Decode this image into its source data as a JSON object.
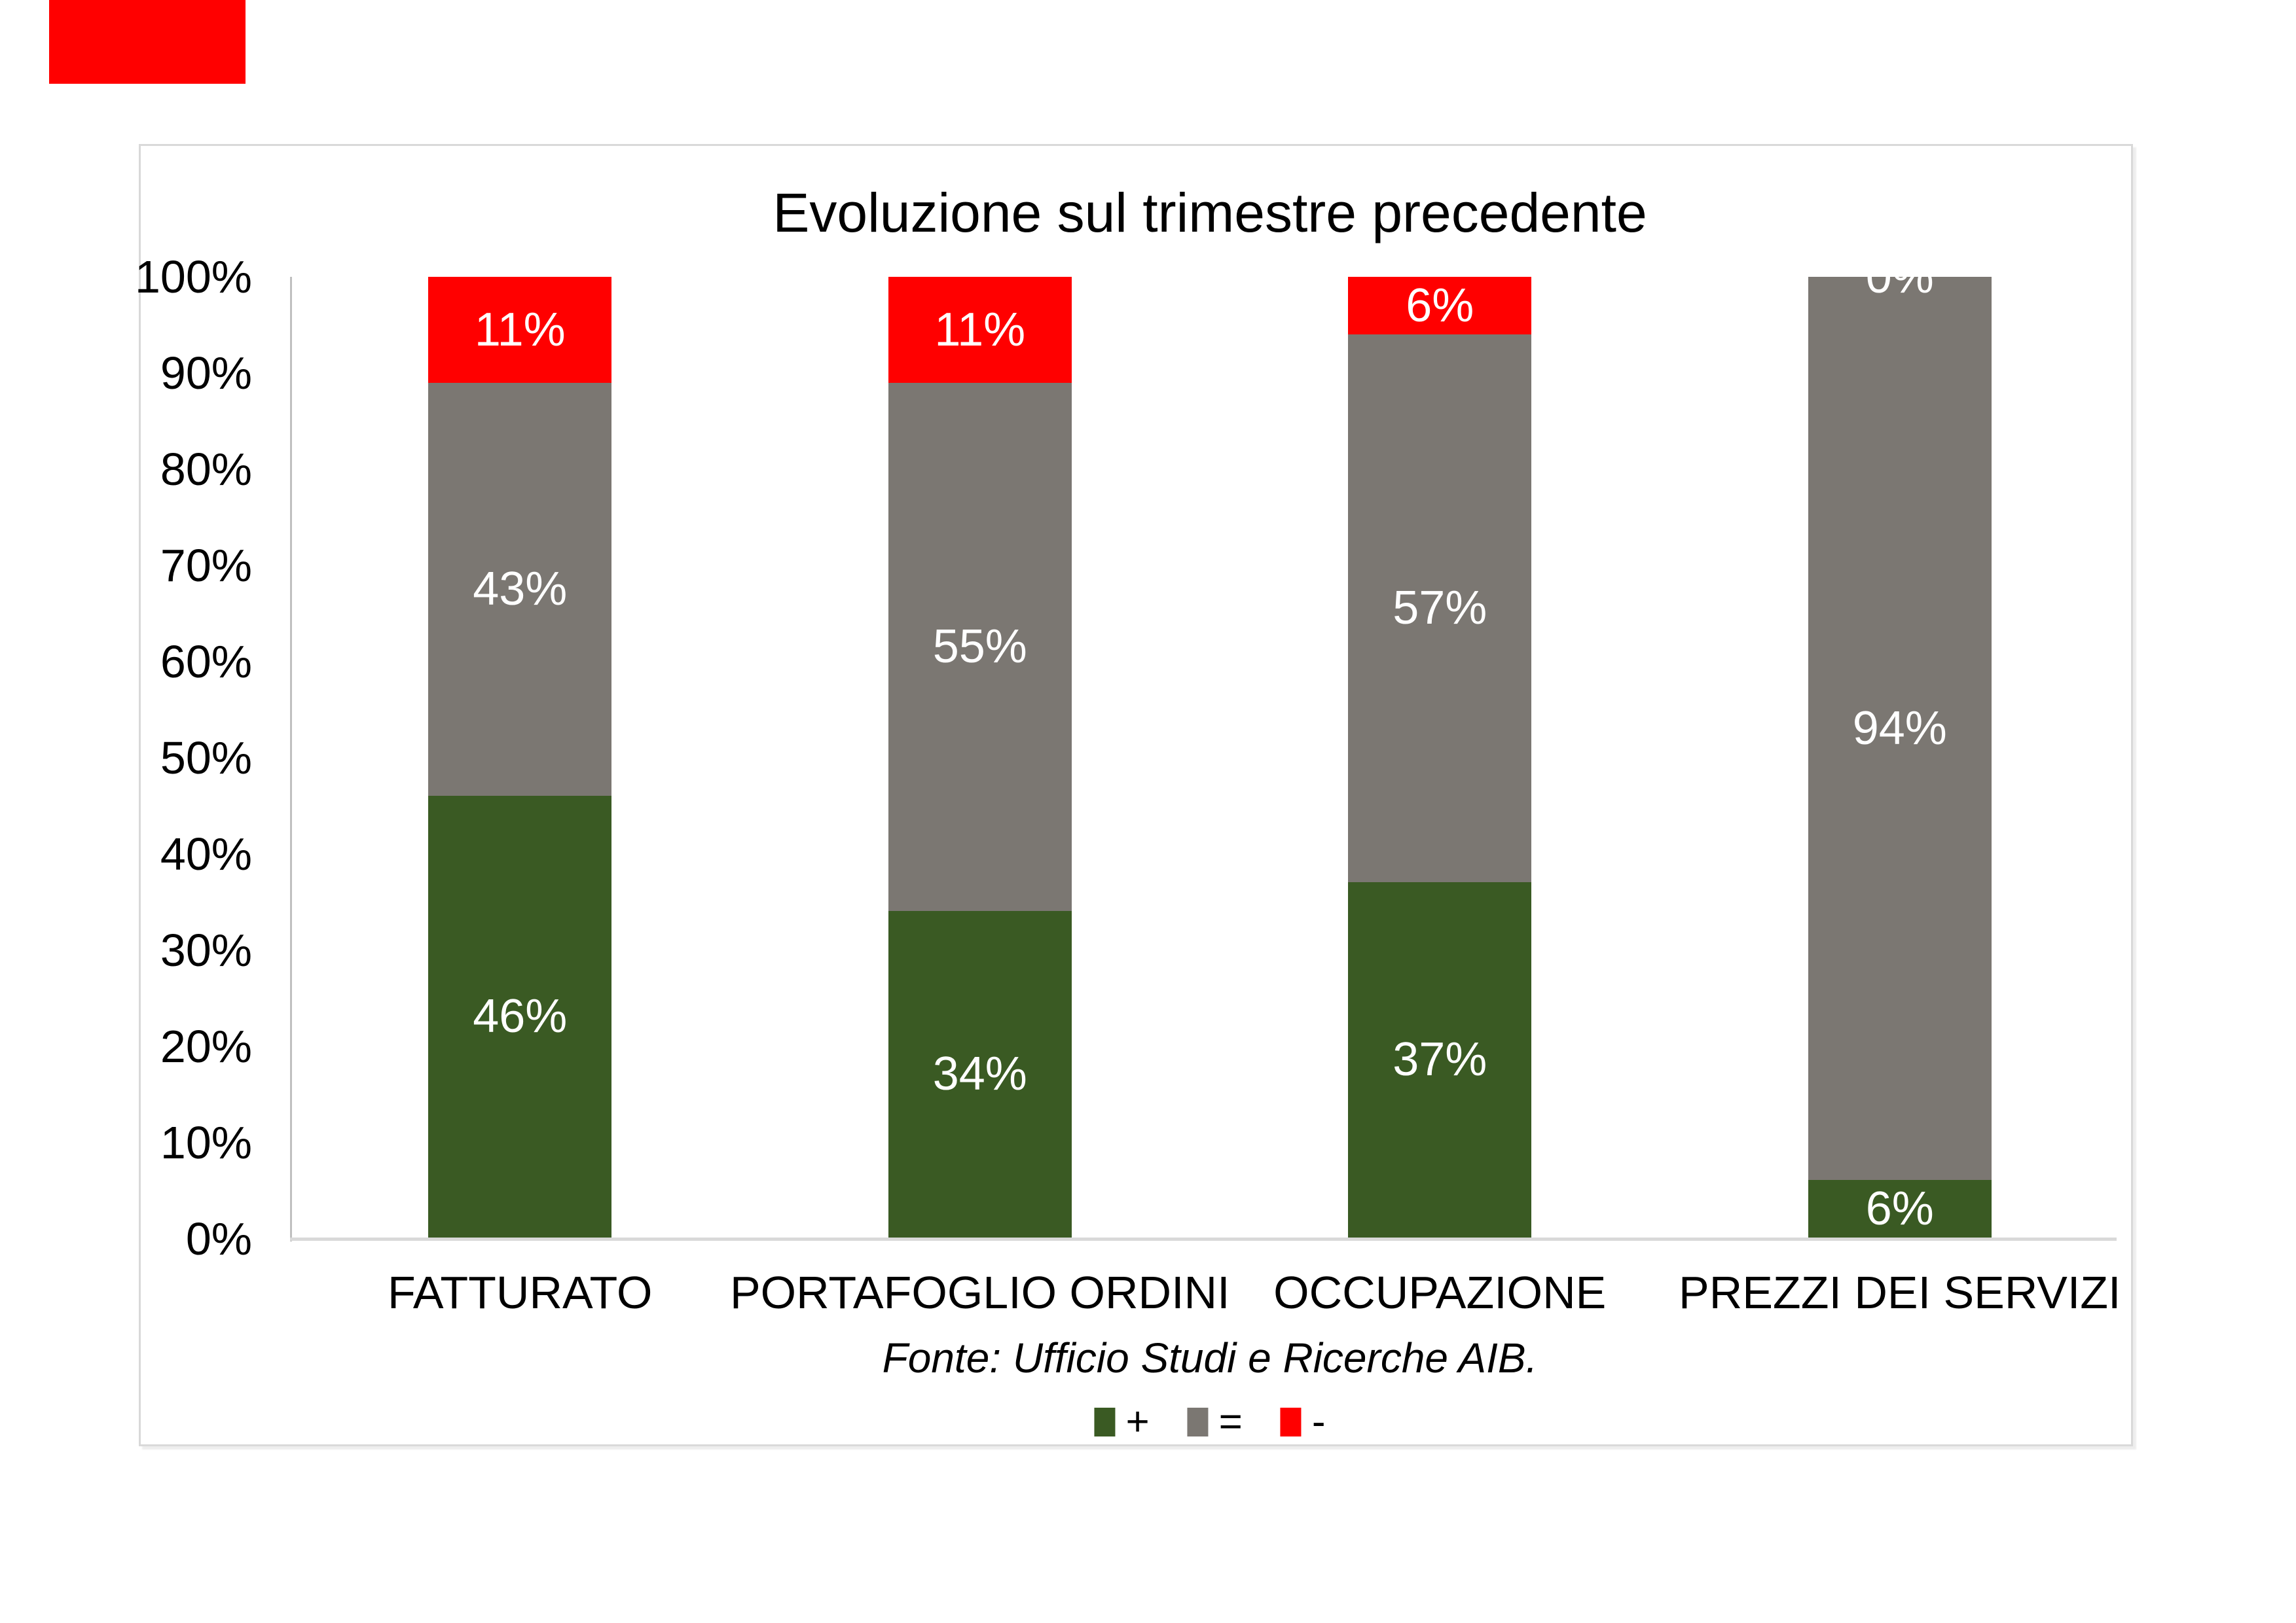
{
  "page": {
    "background": "#ffffff",
    "corner_mark_color": "#ff0000"
  },
  "chart": {
    "title": "Evoluzione sul trimestre precedente",
    "source": "Fonte: Ufficio Studi e Ricerche AIB."
  },
  "chart_data": {
    "type": "bar",
    "subtype": "stacked-100-percent-column",
    "title": "Evoluzione sul trimestre precedente",
    "categories": [
      "FATTURATO",
      "PORTAFOGLIO ORDINI",
      "OCCUPAZIONE",
      "PREZZI DEI SERVIZI"
    ],
    "series": [
      {
        "name": "+",
        "color": "#3a5a23",
        "values": [
          46,
          34,
          37,
          6
        ]
      },
      {
        "name": "=",
        "color": "#7b7772",
        "values": [
          43,
          55,
          57,
          94
        ]
      },
      {
        "name": "-",
        "color": "#ff0000",
        "values": [
          11,
          11,
          6,
          0
        ]
      }
    ],
    "value_label_format": "0%",
    "value_label_color": "#ffffff",
    "y_ticks": [
      "0%",
      "10%",
      "20%",
      "30%",
      "40%",
      "50%",
      "60%",
      "70%",
      "80%",
      "90%",
      "100%"
    ],
    "ylim": [
      0,
      100
    ],
    "grid": false,
    "legend_position": "bottom",
    "legend_entries": [
      "+",
      "=",
      "-"
    ],
    "source": "Fonte: Ufficio Studi e Ricerche AIB.",
    "colors": {
      "axis_line": "#bfbfbf",
      "baseline": "#d9d9d9",
      "card_border": "#d9d9d9",
      "text": "#000000"
    }
  }
}
